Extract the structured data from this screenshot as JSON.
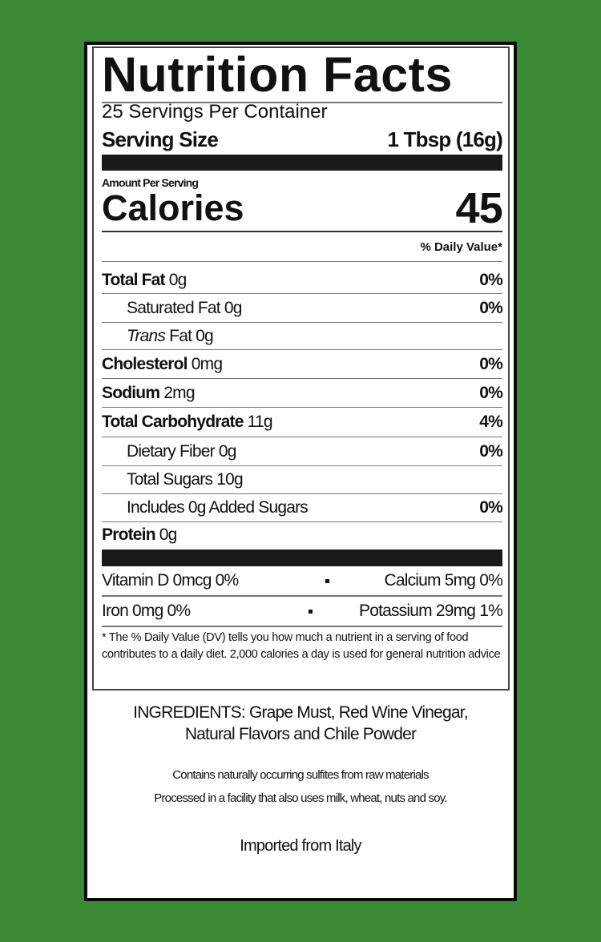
{
  "label": {
    "title": "Nutrition Facts",
    "servings_per_container": "25 Servings Per Container",
    "serving_size_label": "Serving Size",
    "serving_size_value": "1 Tbsp (16g)",
    "amount_per_serving": "Amount Per Serving",
    "calories_label": "Calories",
    "calories_value": "45",
    "daily_value_header": "% Daily Value*",
    "nutrients": [
      {
        "name": "Total Fat",
        "amount": "0g",
        "dv": "0%"
      },
      {
        "name": "Saturated Fat",
        "amount": "0g",
        "dv": "0%"
      },
      {
        "name": "Trans",
        "suffix": "Fat 0g",
        "dv": ""
      },
      {
        "name": "Cholesterol",
        "amount": "0mg",
        "dv": "0%"
      },
      {
        "name": "Sodium",
        "amount": "2mg",
        "dv": "0%"
      },
      {
        "name": "Total Carbohydrate",
        "amount": "11g",
        "dv": "4%"
      },
      {
        "name": "Dietary Fiber",
        "amount": "0g",
        "dv": "0%"
      },
      {
        "name": "Total Sugars",
        "amount": "10g",
        "dv": ""
      },
      {
        "name": "Includes 0g Added Sugars",
        "amount": "",
        "dv": "0%"
      },
      {
        "name": "Protein",
        "amount": "0g",
        "dv": ""
      }
    ],
    "vitamins": [
      {
        "left": "Vitamin D 0mcg 0%",
        "right": "Calcium 5mg 0%"
      },
      {
        "left": "Iron 0mg 0%",
        "right": "Potassium 29mg 1%"
      }
    ],
    "footnote": "* The % Daily Value (DV) tells you how much a nutrient in a serving of food contributes to a daily diet. 2,000 calories a day is used for general nutrition advice"
  },
  "ingredients": {
    "line1": "INGREDIENTS: Grape Must, Red Wine Vinegar,",
    "line2": "Natural Flavors and Chile Powder"
  },
  "notes": {
    "sulfites": "Contains naturally occurring sulfites from raw materials",
    "allergens": "Processed in a facility that also uses milk, wheat, nuts and soy."
  },
  "origin": "Imported from Italy",
  "colors": {
    "background": "#3a8a35",
    "panel": "#ffffff",
    "ink": "#111111"
  }
}
